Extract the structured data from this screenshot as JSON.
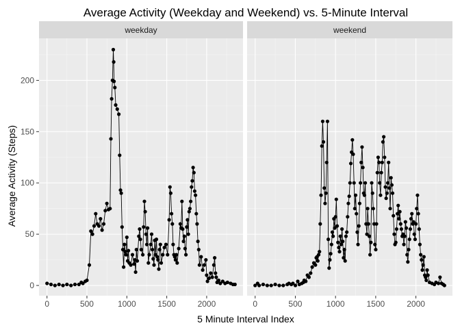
{
  "chart_data": {
    "type": "line",
    "title": "Average Activity (Weekday and Weekend) vs. 5-Minute Interval",
    "xlabel": "5 Minute Interval Index",
    "ylabel": "Average Activity (Steps)",
    "xlim": [
      -100,
      2455
    ],
    "ylim": [
      -10,
      241
    ],
    "x_ticks": [
      0,
      500,
      1000,
      1500,
      2000
    ],
    "y_ticks": [
      0,
      50,
      100,
      150,
      200
    ],
    "grid": true,
    "markers": "points",
    "panels": [
      {
        "label": "weekday",
        "points": [
          [
            0,
            2
          ],
          [
            50,
            1
          ],
          [
            100,
            0
          ],
          [
            150,
            1
          ],
          [
            200,
            0
          ],
          [
            250,
            1
          ],
          [
            300,
            0
          ],
          [
            350,
            1
          ],
          [
            400,
            1
          ],
          [
            430,
            3
          ],
          [
            450,
            2
          ],
          [
            480,
            4
          ],
          [
            500,
            5
          ],
          [
            530,
            20
          ],
          [
            550,
            53
          ],
          [
            570,
            50
          ],
          [
            590,
            58
          ],
          [
            610,
            70
          ],
          [
            630,
            60
          ],
          [
            650,
            58
          ],
          [
            670,
            65
          ],
          [
            690,
            54
          ],
          [
            710,
            60
          ],
          [
            730,
            73
          ],
          [
            750,
            80
          ],
          [
            770,
            74
          ],
          [
            790,
            75
          ],
          [
            800,
            143
          ],
          [
            810,
            182
          ],
          [
            820,
            200
          ],
          [
            830,
            230
          ],
          [
            835,
            218
          ],
          [
            840,
            199
          ],
          [
            850,
            193
          ],
          [
            860,
            176
          ],
          [
            880,
            172
          ],
          [
            900,
            167
          ],
          [
            910,
            127
          ],
          [
            920,
            93
          ],
          [
            930,
            90
          ],
          [
            940,
            57
          ],
          [
            950,
            35
          ],
          [
            960,
            18
          ],
          [
            970,
            40
          ],
          [
            980,
            33
          ],
          [
            990,
            30
          ],
          [
            1000,
            47
          ],
          [
            1010,
            24
          ],
          [
            1020,
            34
          ],
          [
            1030,
            22
          ],
          [
            1050,
            20
          ],
          [
            1070,
            30
          ],
          [
            1090,
            21
          ],
          [
            1100,
            25
          ],
          [
            1110,
            13
          ],
          [
            1120,
            35
          ],
          [
            1130,
            24
          ],
          [
            1150,
            48
          ],
          [
            1160,
            55
          ],
          [
            1170,
            45
          ],
          [
            1180,
            35
          ],
          [
            1200,
            30
          ],
          [
            1210,
            57
          ],
          [
            1220,
            82
          ],
          [
            1230,
            72
          ],
          [
            1240,
            50
          ],
          [
            1250,
            40
          ],
          [
            1260,
            56
          ],
          [
            1270,
            22
          ],
          [
            1280,
            30
          ],
          [
            1300,
            40
          ],
          [
            1310,
            50
          ],
          [
            1320,
            35
          ],
          [
            1330,
            26
          ],
          [
            1340,
            20
          ],
          [
            1350,
            44
          ],
          [
            1360,
            30
          ],
          [
            1370,
            45
          ],
          [
            1380,
            28
          ],
          [
            1390,
            25
          ],
          [
            1400,
            16
          ],
          [
            1410,
            35
          ],
          [
            1420,
            40
          ],
          [
            1430,
            22
          ],
          [
            1450,
            30
          ],
          [
            1470,
            37
          ],
          [
            1490,
            40
          ],
          [
            1510,
            30
          ],
          [
            1530,
            64
          ],
          [
            1540,
            96
          ],
          [
            1550,
            90
          ],
          [
            1560,
            70
          ],
          [
            1570,
            60
          ],
          [
            1580,
            40
          ],
          [
            1590,
            30
          ],
          [
            1600,
            28
          ],
          [
            1610,
            25
          ],
          [
            1620,
            30
          ],
          [
            1630,
            22
          ],
          [
            1650,
            36
          ],
          [
            1670,
            60
          ],
          [
            1680,
            56
          ],
          [
            1690,
            82
          ],
          [
            1700,
            55
          ],
          [
            1710,
            43
          ],
          [
            1720,
            48
          ],
          [
            1730,
            36
          ],
          [
            1740,
            30
          ],
          [
            1750,
            57
          ],
          [
            1760,
            64
          ],
          [
            1770,
            50
          ],
          [
            1780,
            72
          ],
          [
            1790,
            75
          ],
          [
            1800,
            82
          ],
          [
            1810,
            96
          ],
          [
            1820,
            102
          ],
          [
            1830,
            115
          ],
          [
            1840,
            110
          ],
          [
            1850,
            92
          ],
          [
            1860,
            88
          ],
          [
            1870,
            70
          ],
          [
            1880,
            60
          ],
          [
            1890,
            43
          ],
          [
            1900,
            35
          ],
          [
            1910,
            20
          ],
          [
            1930,
            28
          ],
          [
            1950,
            15
          ],
          [
            1970,
            20
          ],
          [
            1990,
            25
          ],
          [
            2000,
            10
          ],
          [
            2010,
            4
          ],
          [
            2030,
            7
          ],
          [
            2050,
            12
          ],
          [
            2070,
            8
          ],
          [
            2090,
            20
          ],
          [
            2100,
            27
          ],
          [
            2110,
            12
          ],
          [
            2120,
            8
          ],
          [
            2130,
            3
          ],
          [
            2150,
            5
          ],
          [
            2170,
            2
          ],
          [
            2200,
            4
          ],
          [
            2230,
            2
          ],
          [
            2260,
            3
          ],
          [
            2300,
            2
          ],
          [
            2330,
            1
          ],
          [
            2355,
            1
          ]
        ]
      },
      {
        "label": "weekend",
        "points": [
          [
            0,
            0
          ],
          [
            30,
            2
          ],
          [
            50,
            0
          ],
          [
            100,
            1
          ],
          [
            150,
            0
          ],
          [
            200,
            0
          ],
          [
            250,
            1
          ],
          [
            300,
            0
          ],
          [
            350,
            0
          ],
          [
            400,
            1
          ],
          [
            420,
            2
          ],
          [
            450,
            1
          ],
          [
            470,
            2
          ],
          [
            500,
            0
          ],
          [
            530,
            4
          ],
          [
            550,
            1
          ],
          [
            580,
            2
          ],
          [
            600,
            3
          ],
          [
            610,
            5
          ],
          [
            630,
            4
          ],
          [
            650,
            10
          ],
          [
            670,
            8
          ],
          [
            690,
            12
          ],
          [
            710,
            18
          ],
          [
            730,
            22
          ],
          [
            750,
            20
          ],
          [
            760,
            27
          ],
          [
            770,
            28
          ],
          [
            780,
            24
          ],
          [
            790,
            30
          ],
          [
            800,
            33
          ],
          [
            810,
            60
          ],
          [
            820,
            88
          ],
          [
            830,
            136
          ],
          [
            840,
            160
          ],
          [
            850,
            140
          ],
          [
            860,
            95
          ],
          [
            870,
            80
          ],
          [
            880,
            90
          ],
          [
            890,
            120
          ],
          [
            900,
            160
          ],
          [
            910,
            45
          ],
          [
            920,
            17
          ],
          [
            930,
            25
          ],
          [
            940,
            31
          ],
          [
            950,
            40
          ],
          [
            960,
            52
          ],
          [
            970,
            48
          ],
          [
            980,
            65
          ],
          [
            990,
            56
          ],
          [
            1000,
            67
          ],
          [
            1010,
            84
          ],
          [
            1020,
            58
          ],
          [
            1030,
            42
          ],
          [
            1040,
            37
          ],
          [
            1050,
            33
          ],
          [
            1060,
            48
          ],
          [
            1070,
            40
          ],
          [
            1080,
            55
          ],
          [
            1090,
            43
          ],
          [
            1100,
            27
          ],
          [
            1110,
            35
          ],
          [
            1120,
            24
          ],
          [
            1130,
            48
          ],
          [
            1140,
            52
          ],
          [
            1150,
            67
          ],
          [
            1160,
            80
          ],
          [
            1170,
            87
          ],
          [
            1180,
            100
          ],
          [
            1190,
            119
          ],
          [
            1200,
            130
          ],
          [
            1210,
            142
          ],
          [
            1220,
            128
          ],
          [
            1230,
            100
          ],
          [
            1240,
            75
          ],
          [
            1250,
            88
          ],
          [
            1260,
            70
          ],
          [
            1270,
            52
          ],
          [
            1280,
            40
          ],
          [
            1290,
            58
          ],
          [
            1300,
            80
          ],
          [
            1310,
            100
          ],
          [
            1320,
            120
          ],
          [
            1330,
            135
          ],
          [
            1340,
            115
          ],
          [
            1350,
            90
          ],
          [
            1360,
            88
          ],
          [
            1370,
            100
          ],
          [
            1380,
            60
          ],
          [
            1390,
            50
          ],
          [
            1400,
            75
          ],
          [
            1410,
            60
          ],
          [
            1420,
            48
          ],
          [
            1430,
            30
          ],
          [
            1440,
            42
          ],
          [
            1450,
            100
          ],
          [
            1460,
            90
          ],
          [
            1470,
            75
          ],
          [
            1480,
            60
          ],
          [
            1490,
            40
          ],
          [
            1500,
            35
          ],
          [
            1510,
            60
          ],
          [
            1520,
            110
          ],
          [
            1530,
            125
          ],
          [
            1540,
            120
          ],
          [
            1550,
            100
          ],
          [
            1560,
            88
          ],
          [
            1570,
            110
          ],
          [
            1580,
            120
          ],
          [
            1590,
            140
          ],
          [
            1600,
            145
          ],
          [
            1610,
            125
          ],
          [
            1620,
            96
          ],
          [
            1630,
            85
          ],
          [
            1640,
            90
          ],
          [
            1650,
            100
          ],
          [
            1660,
            120
          ],
          [
            1670,
            95
          ],
          [
            1680,
            75
          ],
          [
            1690,
            105
          ],
          [
            1700,
            98
          ],
          [
            1710,
            90
          ],
          [
            1720,
            68
          ],
          [
            1730,
            50
          ],
          [
            1740,
            40
          ],
          [
            1750,
            42
          ],
          [
            1760,
            55
          ],
          [
            1770,
            70
          ],
          [
            1780,
            78
          ],
          [
            1790,
            65
          ],
          [
            1800,
            72
          ],
          [
            1810,
            60
          ],
          [
            1820,
            55
          ],
          [
            1830,
            48
          ],
          [
            1840,
            50
          ],
          [
            1850,
            40
          ],
          [
            1860,
            48
          ],
          [
            1870,
            62
          ],
          [
            1880,
            56
          ],
          [
            1890,
            30
          ],
          [
            1900,
            23
          ],
          [
            1910,
            35
          ],
          [
            1920,
            45
          ],
          [
            1930,
            55
          ],
          [
            1940,
            65
          ],
          [
            1950,
            70
          ],
          [
            1960,
            60
          ],
          [
            1970,
            62
          ],
          [
            1980,
            50
          ],
          [
            1990,
            45
          ],
          [
            2000,
            60
          ],
          [
            2010,
            75
          ],
          [
            2020,
            88
          ],
          [
            2030,
            70
          ],
          [
            2040,
            55
          ],
          [
            2050,
            40
          ],
          [
            2060,
            30
          ],
          [
            2070,
            25
          ],
          [
            2080,
            15
          ],
          [
            2090,
            20
          ],
          [
            2100,
            28
          ],
          [
            2110,
            10
          ],
          [
            2120,
            8
          ],
          [
            2130,
            5
          ],
          [
            2140,
            15
          ],
          [
            2150,
            10
          ],
          [
            2170,
            3
          ],
          [
            2200,
            2
          ],
          [
            2230,
            1
          ],
          [
            2250,
            3
          ],
          [
            2280,
            2
          ],
          [
            2300,
            8
          ],
          [
            2320,
            2
          ],
          [
            2340,
            1
          ],
          [
            2355,
            0
          ]
        ]
      }
    ]
  }
}
